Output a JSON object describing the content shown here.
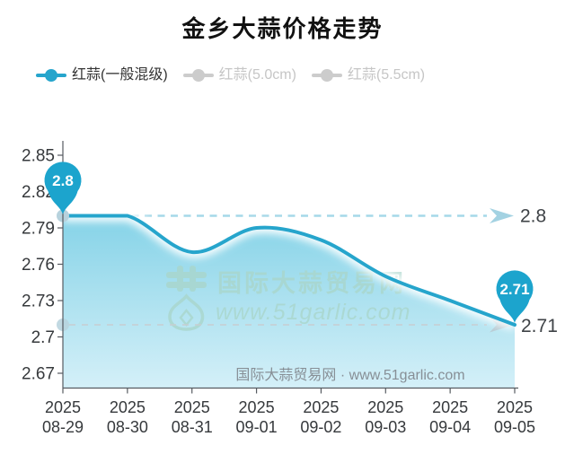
{
  "title": "金乡大蒜价格走势",
  "legend": {
    "items": [
      {
        "label": "红蒜(一般混级)",
        "color": "#26a5cc",
        "text_color": "#333333",
        "active": true
      },
      {
        "label": "红蒜(5.0cm)",
        "color": "#cccccc",
        "text_color": "#c6c6c6",
        "active": false
      },
      {
        "label": "红蒜(5.5cm)",
        "color": "#cccccc",
        "text_color": "#c6c6c6",
        "active": false
      }
    ]
  },
  "chart_data": {
    "type": "area",
    "title": "金乡大蒜价格走势",
    "categories": [
      "2025-08-29",
      "2025-08-30",
      "2025-08-31",
      "2025-09-01",
      "2025-09-02",
      "2025-09-03",
      "2025-09-04",
      "2025-09-05"
    ],
    "series": [
      {
        "name": "红蒜(一般混级)",
        "color": "#26a5cc",
        "values": [
          2.8,
          2.8,
          2.77,
          2.79,
          2.78,
          2.75,
          2.73,
          2.71
        ]
      }
    ],
    "ylim": [
      2.67,
      2.85
    ],
    "y_ticks": [
      2.85,
      2.82,
      2.79,
      2.76,
      2.73,
      2.7,
      2.67
    ],
    "grid": false,
    "legend_position": "top",
    "annotations": {
      "start_pin": {
        "label": "2.8",
        "index": 0
      },
      "end_pin": {
        "label": "2.71",
        "index": 7
      },
      "reference_lines": [
        {
          "value": 2.8,
          "label": "2.8",
          "style": "blue-dashed-arrow"
        },
        {
          "value": 2.71,
          "label": "2.71",
          "style": "gray-dashed-arrow"
        }
      ]
    }
  },
  "watermark_center": {
    "site_name": "国际大蒜贸易网",
    "site_url": "www.51garlic.com"
  },
  "watermark_bottom": "国际大蒜贸易网 · www.51garlic.com",
  "colors": {
    "line": "#26a5cc",
    "pin": "#1ca4cd",
    "pin_text": "#ffffff",
    "area_top": "#7ed0e6",
    "area_bottom": "#d2eff8",
    "dash_blue": "#a5d8e8",
    "arrow_blue": "#a3d2e2",
    "dash_gray": "#c5ced2",
    "arrow_gray": "#b7c7cf",
    "dot": "#b7d2dd",
    "axis": "#565b61",
    "axis_label": "#36393c",
    "ref_label": "#3f4347",
    "watermark_center": "#a9d6cb",
    "watermark_bottom": "#878f96"
  }
}
